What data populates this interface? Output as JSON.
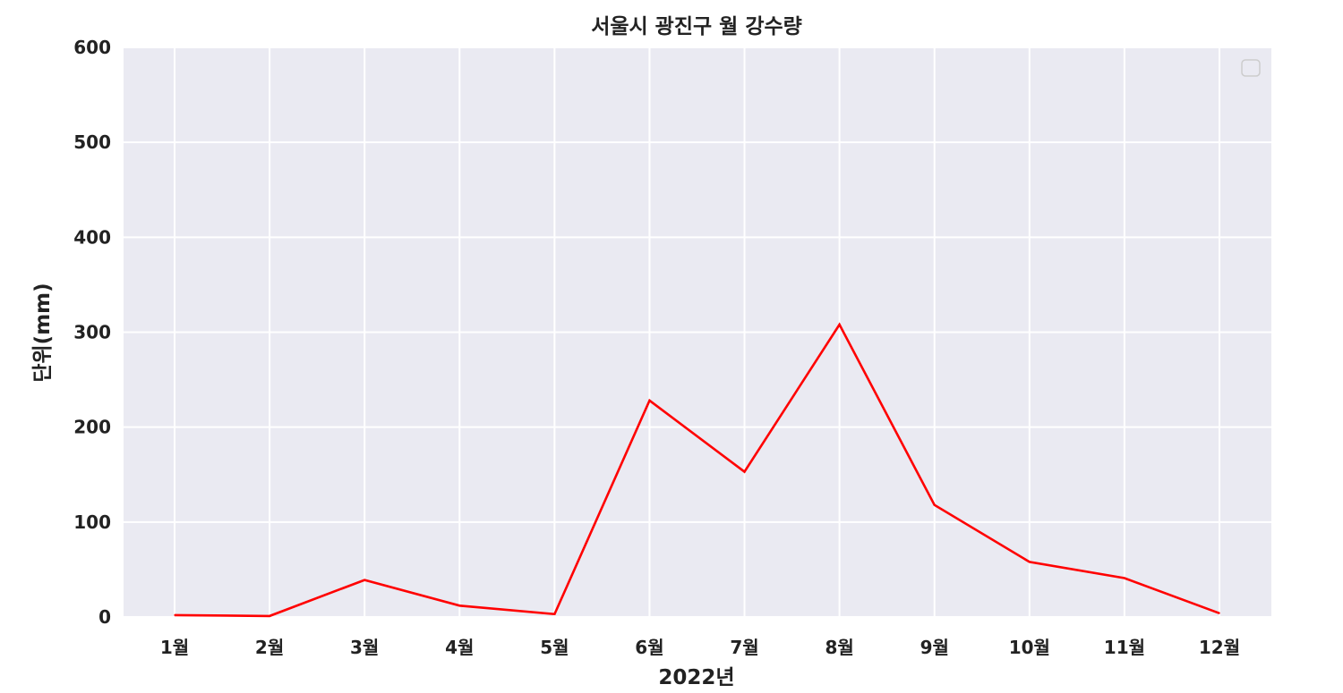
{
  "chart_data": {
    "type": "line",
    "title": "서울시 광진구 월 강수량",
    "xlabel": "2022년",
    "ylabel": "단위(mm)",
    "categories": [
      "1월",
      "2월",
      "3월",
      "4월",
      "5월",
      "6월",
      "7월",
      "8월",
      "9월",
      "10월",
      "11월",
      "12월"
    ],
    "series": [
      {
        "values": [
          2,
          1,
          39,
          12,
          3,
          228,
          153,
          308,
          118,
          58,
          41,
          4
        ],
        "color": "#ff0000"
      }
    ],
    "ylim": [
      0,
      600
    ],
    "yticks": [
      0,
      100,
      200,
      300,
      400,
      500,
      600
    ],
    "grid": true,
    "plot_background": "#eaeaf2",
    "grid_color": "#ffffff",
    "legend": {
      "placement": "top-right",
      "entries": []
    }
  }
}
